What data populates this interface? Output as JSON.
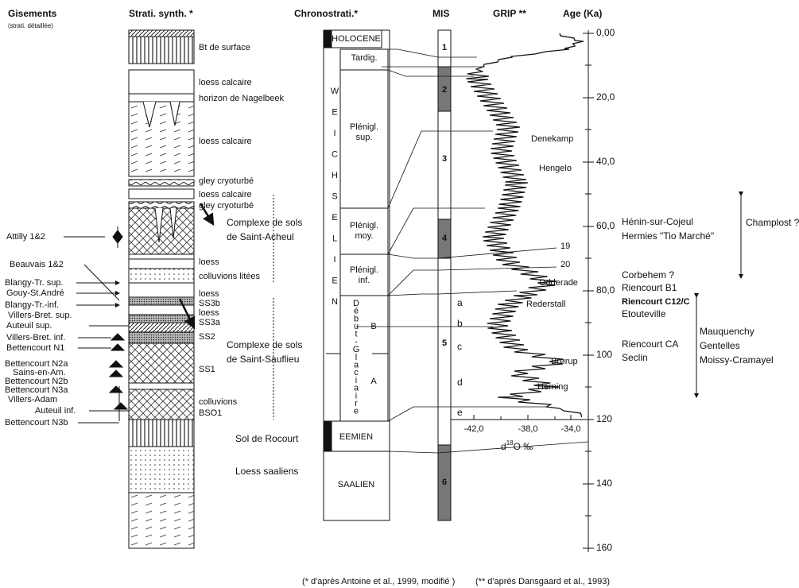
{
  "headers": {
    "gisements": "Gisements",
    "gisements_note": "(strati. détaillée)",
    "strati": "Strati. synth. *",
    "chrono": "Chronostrati.*",
    "mis": "MIS",
    "grip": "GRIP **",
    "age": "Age (Ka)"
  },
  "strati_layers": [
    "Bt de surface",
    "loess calcaire",
    "horizon de Nagelbeek",
    "loess calcaire",
    "gley cryoturbé",
    "loess calcaire",
    "gley cryoturbé",
    "loess",
    "colluvions litées",
    "loess",
    "SS3b",
    "loess",
    "SS3a",
    "SS2",
    "SS1",
    "colluvions",
    "BSO1"
  ],
  "complexes": {
    "saint_acheul": [
      "Complexe de sols",
      "de Saint-Acheul"
    ],
    "saint_sauflieu": [
      "Complexe de sols",
      "de Saint-Sauflieu"
    ],
    "rocourt": "Sol de Rocourt",
    "saaliens": "Loess saaliens"
  },
  "sites_left": [
    "Attilly 1&2",
    "Beauvais 1&2",
    "Blangy-Tr. sup.",
    "Gouy-St.André",
    "Blangy-Tr.-inf.",
    "Villers-Bret. sup.",
    "Auteuil sup.",
    "Villers-Bret. inf.",
    "Bettencourt N1",
    "Bettencourt N2a",
    "Sains-en-Am.",
    "Bettencourt N2b",
    "Bettencourt N3a",
    "Villers-Adam",
    "Auteuil inf.",
    "Bettencourt N3b"
  ],
  "chrono": {
    "holocene": "HOLOCENE",
    "weichselien": [
      "W",
      "E",
      "I",
      "C",
      "H",
      "S",
      "E",
      "L",
      "I",
      "E",
      "N"
    ],
    "tardig": "Tardig.",
    "plenigl_sup": [
      "Plénigl.",
      "sup."
    ],
    "plenigl_moy": [
      "Plénigl.",
      "moy."
    ],
    "plenigl_inf": [
      "Plénigl.",
      "inf."
    ],
    "debut_glaciaire": [
      "D",
      "é",
      "b",
      "u",
      "t",
      "-",
      "G",
      "l",
      "a",
      "c",
      "i",
      "a",
      "i",
      "r",
      "e"
    ],
    "b": "B",
    "a": "A",
    "eemien": "EEMIEN",
    "saalien": "SAALIEN"
  },
  "mis": [
    "1",
    "2",
    "3",
    "4",
    "5",
    "6"
  ],
  "substages": [
    "a",
    "b",
    "c",
    "d",
    "e"
  ],
  "grip_events": [
    "Denekamp",
    "Hengelo",
    "19",
    "20",
    "Odderade",
    "Rederstall",
    "Brørup",
    "Herning"
  ],
  "age_ticks": [
    "0,00",
    "20,0",
    "40,0",
    "60,0",
    "80,0",
    "100",
    "120",
    "140",
    "160"
  ],
  "grip_ticks": [
    "-42,0",
    "-38,0",
    "-34,0"
  ],
  "grip_axis_label": {
    "d": "d",
    "sup": "18",
    "rest": "O ‰"
  },
  "sites_right": [
    "Hénin-sur-Cojeul",
    "Hermies \"Tio Marché\"",
    "Corbehem ?",
    "Riencourt B1",
    "Riencourt C12/C",
    "Etouteville",
    "Riencourt CA",
    "Seclin"
  ],
  "groups_right": {
    "champlost": "Champlost ?",
    "south": [
      "Mauquenchy",
      "Gentelles",
      "Moissy-Cramayel"
    ]
  },
  "footnotes": [
    "(* d'après Antoine et al., 1999, modifié )",
    "(** d'après Dansgaard et al., 1993)"
  ]
}
